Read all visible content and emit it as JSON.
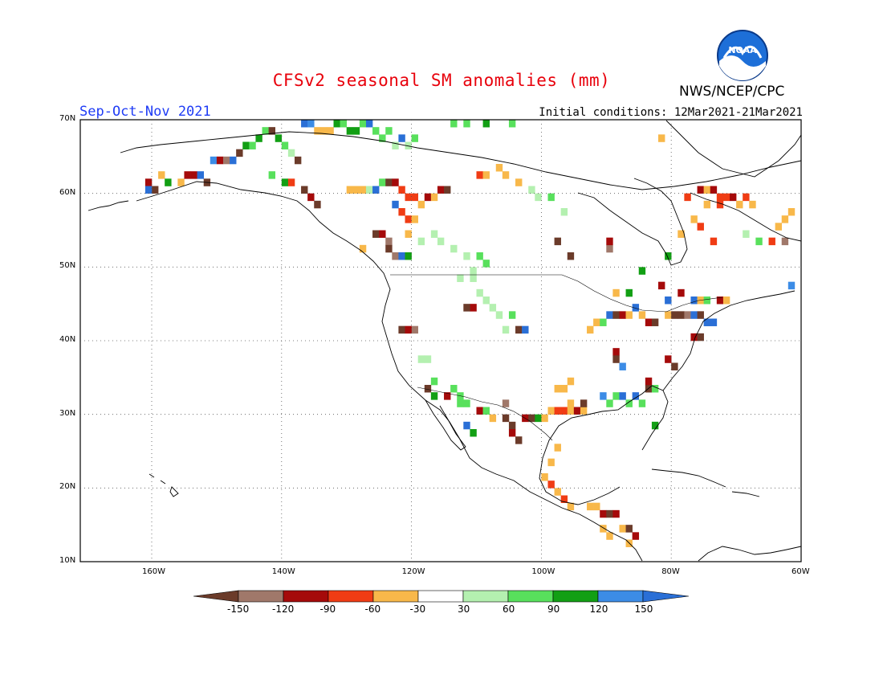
{
  "title": "CFSv2 seasonal SM anomalies (mm)",
  "season_label": "Sep-Oct-Nov 2021",
  "initial_conditions": "Initial conditions: 12Mar2021-21Mar2021",
  "org_label": "NWS/NCEP/CPC",
  "logo_text": "NOAA",
  "map": {
    "projection": "lat-lon",
    "lon_range": [
      -171,
      -60
    ],
    "lat_range": [
      10,
      70
    ],
    "lat_ticks": [
      "10N",
      "20N",
      "30N",
      "40N",
      "50N",
      "60N",
      "70N"
    ],
    "lon_ticks": [
      "160W",
      "140W",
      "120W",
      "100W",
      "80W",
      "60W"
    ],
    "grid": "dotted"
  },
  "colorbar": {
    "tick_labels": [
      "-150",
      "-120",
      "-90",
      "-60",
      "-30",
      "30",
      "60",
      "90",
      "120",
      "150"
    ],
    "colors": [
      "#6b3b2a",
      "#a0786a",
      "#a50a0a",
      "#f03c14",
      "#f8b84a",
      "#ffffff",
      "#b4f0b0",
      "#58e05c",
      "#129f14",
      "#3c8ce6",
      "#2a6fd6"
    ]
  },
  "anomaly_cells": [
    [
      -160.5,
      61.5,
      "#a50a0a"
    ],
    [
      -159.5,
      60.5,
      "#6b3b2a"
    ],
    [
      -160.5,
      60.5,
      "#2a6fd6"
    ],
    [
      -158.5,
      62.5,
      "#f8b84a"
    ],
    [
      -157.5,
      61.5,
      "#129f14"
    ],
    [
      -155.5,
      61.5,
      "#f8b84a"
    ],
    [
      -154.5,
      62.5,
      "#a50a0a"
    ],
    [
      -153.5,
      62.5,
      "#a50a0a"
    ],
    [
      -152.5,
      62.5,
      "#2a6fd6"
    ],
    [
      -151.5,
      61.5,
      "#6b3b2a"
    ],
    [
      -150.5,
      64.5,
      "#3c8ce6"
    ],
    [
      -149.5,
      64.5,
      "#a50a0a"
    ],
    [
      -148.5,
      64.5,
      "#a0786a"
    ],
    [
      -147.5,
      64.5,
      "#2a6fd6"
    ],
    [
      -146.5,
      65.5,
      "#6b3b2a"
    ],
    [
      -145.5,
      66.5,
      "#129f14"
    ],
    [
      -144.5,
      66.5,
      "#58e05c"
    ],
    [
      -143.5,
      67.5,
      "#129f14"
    ],
    [
      -142.5,
      68.5,
      "#58e05c"
    ],
    [
      -141.5,
      68.5,
      "#6b3b2a"
    ],
    [
      -140.5,
      67.5,
      "#129f14"
    ],
    [
      -139.5,
      66.5,
      "#58e05c"
    ],
    [
      -138.5,
      65.5,
      "#b4f0b0"
    ],
    [
      -137.5,
      64.5,
      "#6b3b2a"
    ],
    [
      -136.5,
      69.5,
      "#2a6fd6"
    ],
    [
      -135.5,
      69.5,
      "#3c8ce6"
    ],
    [
      -134.5,
      68.5,
      "#f8b84a"
    ],
    [
      -133.5,
      68.5,
      "#f8b84a"
    ],
    [
      -132.5,
      68.5,
      "#f8b84a"
    ],
    [
      -131.5,
      69.5,
      "#129f14"
    ],
    [
      -130.5,
      69.5,
      "#58e05c"
    ],
    [
      -129.5,
      68.5,
      "#129f14"
    ],
    [
      -128.5,
      68.5,
      "#129f14"
    ],
    [
      -127.5,
      69.5,
      "#58e05c"
    ],
    [
      -126.5,
      69.5,
      "#2a6fd6"
    ],
    [
      -125.5,
      68.5,
      "#58e05c"
    ],
    [
      -124.5,
      67.5,
      "#58e05c"
    ],
    [
      -123.5,
      68.5,
      "#58e05c"
    ],
    [
      -122.5,
      66.5,
      "#b4f0b0"
    ],
    [
      -121.5,
      67.5,
      "#2a6fd6"
    ],
    [
      -120.5,
      66.5,
      "#b4f0b0"
    ],
    [
      -119.5,
      67.5,
      "#58e05c"
    ],
    [
      -141.5,
      62.5,
      "#58e05c"
    ],
    [
      -139.5,
      61.5,
      "#129f14"
    ],
    [
      -138.5,
      61.5,
      "#f03c14"
    ],
    [
      -136.5,
      60.5,
      "#6b3b2a"
    ],
    [
      -135.5,
      59.5,
      "#a50a0a"
    ],
    [
      -134.5,
      58.5,
      "#6b3b2a"
    ],
    [
      -129.5,
      60.5,
      "#f8b84a"
    ],
    [
      -128.5,
      60.5,
      "#f8b84a"
    ],
    [
      -127.5,
      60.5,
      "#f8b84a"
    ],
    [
      -126.5,
      60.5,
      "#b4f0b0"
    ],
    [
      -125.5,
      60.5,
      "#2a6fd6"
    ],
    [
      -124.5,
      61.5,
      "#58e05c"
    ],
    [
      -123.5,
      61.5,
      "#6b3b2a"
    ],
    [
      -122.5,
      61.5,
      "#a50a0a"
    ],
    [
      -121.5,
      60.5,
      "#f03c14"
    ],
    [
      -120.5,
      59.5,
      "#f03c14"
    ],
    [
      -119.5,
      59.5,
      "#f03c14"
    ],
    [
      -118.5,
      58.5,
      "#f8b84a"
    ],
    [
      -117.5,
      59.5,
      "#a50a0a"
    ],
    [
      -116.5,
      59.5,
      "#f8b84a"
    ],
    [
      -115.5,
      60.5,
      "#a50a0a"
    ],
    [
      -114.5,
      60.5,
      "#6b3b2a"
    ],
    [
      -121.5,
      57.5,
      "#f03c14"
    ],
    [
      -120.5,
      56.5,
      "#f03c14"
    ],
    [
      -119.5,
      56.5,
      "#f8b84a"
    ],
    [
      -122.5,
      58.5,
      "#2a6fd6"
    ],
    [
      -120.5,
      54.5,
      "#f8b84a"
    ],
    [
      -123.5,
      53.5,
      "#a0786a"
    ],
    [
      -123.5,
      52.5,
      "#6b3b2a"
    ],
    [
      -122.5,
      51.5,
      "#a0786a"
    ],
    [
      -125.5,
      54.5,
      "#6b3b2a"
    ],
    [
      -124.5,
      54.5,
      "#a50a0a"
    ],
    [
      -127.5,
      52.5,
      "#f8b84a"
    ],
    [
      -121.5,
      51.5,
      "#2a6fd6"
    ],
    [
      -120.5,
      51.5,
      "#129f14"
    ],
    [
      -118.5,
      53.5,
      "#b4f0b0"
    ],
    [
      -116.5,
      54.5,
      "#b4f0b0"
    ],
    [
      -115.5,
      53.5,
      "#b4f0b0"
    ],
    [
      -113.5,
      52.5,
      "#b4f0b0"
    ],
    [
      -111.5,
      51.5,
      "#b4f0b0"
    ],
    [
      -109.5,
      51.5,
      "#58e05c"
    ],
    [
      -108.5,
      50.5,
      "#58e05c"
    ],
    [
      -110.5,
      49.5,
      "#b4f0b0"
    ],
    [
      -112.5,
      48.5,
      "#b4f0b0"
    ],
    [
      -110.5,
      48.5,
      "#b4f0b0"
    ],
    [
      -109.5,
      46.5,
      "#b4f0b0"
    ],
    [
      -108.5,
      45.5,
      "#b4f0b0"
    ],
    [
      -110.5,
      44.5,
      "#a50a0a"
    ],
    [
      -111.5,
      44.5,
      "#6b3b2a"
    ],
    [
      -107.5,
      44.5,
      "#b4f0b0"
    ],
    [
      -106.5,
      43.5,
      "#b4f0b0"
    ],
    [
      -104.5,
      43.5,
      "#58e05c"
    ],
    [
      -103.5,
      41.5,
      "#6b3b2a"
    ],
    [
      -102.5,
      41.5,
      "#2a6fd6"
    ],
    [
      -105.5,
      41.5,
      "#b4f0b0"
    ],
    [
      -119.5,
      41.5,
      "#a0786a"
    ],
    [
      -121.5,
      41.5,
      "#6b3b2a"
    ],
    [
      -120.5,
      41.5,
      "#a50a0a"
    ],
    [
      -118.5,
      37.5,
      "#b4f0b0"
    ],
    [
      -117.5,
      37.5,
      "#b4f0b0"
    ],
    [
      -116.5,
      34.5,
      "#58e05c"
    ],
    [
      -117.5,
      33.5,
      "#6b3b2a"
    ],
    [
      -116.5,
      32.5,
      "#129f14"
    ],
    [
      -114.5,
      32.5,
      "#a50a0a"
    ],
    [
      -113.5,
      33.5,
      "#58e05c"
    ],
    [
      -112.5,
      32.5,
      "#58e05c"
    ],
    [
      -112.5,
      31.5,
      "#58e05c"
    ],
    [
      -111.5,
      31.5,
      "#58e05c"
    ],
    [
      -111.5,
      28.5,
      "#2a6fd6"
    ],
    [
      -110.5,
      27.5,
      "#129f14"
    ],
    [
      -109.5,
      30.5,
      "#a50a0a"
    ],
    [
      -108.5,
      30.5,
      "#58e05c"
    ],
    [
      -107.5,
      29.5,
      "#f8b84a"
    ],
    [
      -105.5,
      31.5,
      "#a0786a"
    ],
    [
      -105.5,
      29.5,
      "#6b3b2a"
    ],
    [
      -104.5,
      28.5,
      "#6b3b2a"
    ],
    [
      -104.5,
      27.5,
      "#a50a0a"
    ],
    [
      -103.5,
      26.5,
      "#6b3b2a"
    ],
    [
      -102.5,
      29.5,
      "#a50a0a"
    ],
    [
      -101.5,
      29.5,
      "#6b3b2a"
    ],
    [
      -100.5,
      29.5,
      "#129f14"
    ],
    [
      -99.5,
      29.5,
      "#f8b84a"
    ],
    [
      -98.5,
      30.5,
      "#f8b84a"
    ],
    [
      -97.5,
      30.5,
      "#f03c14"
    ],
    [
      -96.5,
      30.5,
      "#f03c14"
    ],
    [
      -95.5,
      30.5,
      "#f8b84a"
    ],
    [
      -94.5,
      30.5,
      "#a50a0a"
    ],
    [
      -93.5,
      30.5,
      "#f8b84a"
    ],
    [
      -93.5,
      31.5,
      "#6b3b2a"
    ],
    [
      -95.5,
      31.5,
      "#f8b84a"
    ],
    [
      -97.5,
      25.5,
      "#f8b84a"
    ],
    [
      -98.5,
      23.5,
      "#f8b84a"
    ],
    [
      -99.5,
      21.5,
      "#f8b84a"
    ],
    [
      -98.5,
      20.5,
      "#f03c14"
    ],
    [
      -97.5,
      19.5,
      "#f8b84a"
    ],
    [
      -96.5,
      18.5,
      "#f03c14"
    ],
    [
      -95.5,
      17.5,
      "#f8b84a"
    ],
    [
      -92.5,
      17.5,
      "#f8b84a"
    ],
    [
      -91.5,
      17.5,
      "#f8b84a"
    ],
    [
      -90.5,
      16.5,
      "#a50a0a"
    ],
    [
      -89.5,
      16.5,
      "#6b3b2a"
    ],
    [
      -88.5,
      16.5,
      "#a50a0a"
    ],
    [
      -87.5,
      14.5,
      "#f8b84a"
    ],
    [
      -86.5,
      14.5,
      "#6b3b2a"
    ],
    [
      -85.5,
      13.5,
      "#a50a0a"
    ],
    [
      -86.5,
      12.5,
      "#f8b84a"
    ],
    [
      -90.5,
      14.5,
      "#f8b84a"
    ],
    [
      -89.5,
      13.5,
      "#f8b84a"
    ],
    [
      -97.5,
      33.5,
      "#f8b84a"
    ],
    [
      -96.5,
      33.5,
      "#f8b84a"
    ],
    [
      -95.5,
      34.5,
      "#f8b84a"
    ],
    [
      -90.5,
      32.5,
      "#3c8ce6"
    ],
    [
      -89.5,
      31.5,
      "#58e05c"
    ],
    [
      -88.5,
      32.5,
      "#58e05c"
    ],
    [
      -87.5,
      32.5,
      "#2a6fd6"
    ],
    [
      -86.5,
      31.5,
      "#58e05c"
    ],
    [
      -85.5,
      32.5,
      "#2a6fd6"
    ],
    [
      -84.5,
      31.5,
      "#58e05c"
    ],
    [
      -83.5,
      33.5,
      "#6b3b2a"
    ],
    [
      -83.5,
      34.5,
      "#a50a0a"
    ],
    [
      -82.5,
      33.5,
      "#58e05c"
    ],
    [
      -82.5,
      28.5,
      "#129f14"
    ],
    [
      -80.5,
      37.5,
      "#a50a0a"
    ],
    [
      -79.5,
      36.5,
      "#6b3b2a"
    ],
    [
      -88.5,
      38.5,
      "#a50a0a"
    ],
    [
      -88.5,
      37.5,
      "#6b3b2a"
    ],
    [
      -87.5,
      36.5,
      "#3c8ce6"
    ],
    [
      -92.5,
      41.5,
      "#f8b84a"
    ],
    [
      -91.5,
      42.5,
      "#f8b84a"
    ],
    [
      -90.5,
      42.5,
      "#58e05c"
    ],
    [
      -89.5,
      43.5,
      "#2a6fd6"
    ],
    [
      -88.5,
      43.5,
      "#6b3b2a"
    ],
    [
      -87.5,
      43.5,
      "#a50a0a"
    ],
    [
      -86.5,
      43.5,
      "#f8b84a"
    ],
    [
      -85.5,
      44.5,
      "#2a6fd6"
    ],
    [
      -84.5,
      43.5,
      "#f8b84a"
    ],
    [
      -83.5,
      42.5,
      "#a50a0a"
    ],
    [
      -82.5,
      42.5,
      "#6b3b2a"
    ],
    [
      -80.5,
      43.5,
      "#f8b84a"
    ],
    [
      -79.5,
      43.5,
      "#6b3b2a"
    ],
    [
      -78.5,
      43.5,
      "#6b3b2a"
    ],
    [
      -77.5,
      43.5,
      "#a0786a"
    ],
    [
      -76.5,
      43.5,
      "#2a6fd6"
    ],
    [
      -75.5,
      43.5,
      "#6b3b2a"
    ],
    [
      -74.5,
      42.5,
      "#2a6fd6"
    ],
    [
      -73.5,
      42.5,
      "#2a6fd6"
    ],
    [
      -76.5,
      45.5,
      "#2a6fd6"
    ],
    [
      -75.5,
      45.5,
      "#f8b84a"
    ],
    [
      -74.5,
      45.5,
      "#58e05c"
    ],
    [
      -72.5,
      45.5,
      "#a50a0a"
    ],
    [
      -71.5,
      45.5,
      "#f8b84a"
    ],
    [
      -76.5,
      40.5,
      "#a50a0a"
    ],
    [
      -75.5,
      40.5,
      "#6b3b2a"
    ],
    [
      -78.5,
      46.5,
      "#a50a0a"
    ],
    [
      -80.5,
      45.5,
      "#2a6fd6"
    ],
    [
      -81.5,
      47.5,
      "#a50a0a"
    ],
    [
      -88.5,
      46.5,
      "#f8b84a"
    ],
    [
      -86.5,
      46.5,
      "#129f14"
    ],
    [
      -84.5,
      49.5,
      "#129f14"
    ],
    [
      -89.5,
      52.5,
      "#a0786a"
    ],
    [
      -95.5,
      51.5,
      "#6b3b2a"
    ],
    [
      -97.5,
      53.5,
      "#6b3b2a"
    ],
    [
      -89.5,
      53.5,
      "#a50a0a"
    ],
    [
      -80.5,
      51.5,
      "#129f14"
    ],
    [
      -78.5,
      54.5,
      "#f8b84a"
    ],
    [
      -77.5,
      59.5,
      "#f03c14"
    ],
    [
      -75.5,
      60.5,
      "#a50a0a"
    ],
    [
      -74.5,
      60.5,
      "#f8b84a"
    ],
    [
      -73.5,
      60.5,
      "#a50a0a"
    ],
    [
      -72.5,
      59.5,
      "#f03c14"
    ],
    [
      -71.5,
      59.5,
      "#f03c14"
    ],
    [
      -70.5,
      59.5,
      "#a50a0a"
    ],
    [
      -69.5,
      58.5,
      "#f8b84a"
    ],
    [
      -68.5,
      59.5,
      "#f03c14"
    ],
    [
      -67.5,
      58.5,
      "#f8b84a"
    ],
    [
      -72.5,
      58.5,
      "#f03c14"
    ],
    [
      -74.5,
      58.5,
      "#f8b84a"
    ],
    [
      -76.5,
      56.5,
      "#f8b84a"
    ],
    [
      -75.5,
      55.5,
      "#f03c14"
    ],
    [
      -73.5,
      53.5,
      "#f03c14"
    ],
    [
      -63.5,
      55.5,
      "#f8b84a"
    ],
    [
      -62.5,
      56.5,
      "#f8b84a"
    ],
    [
      -61.5,
      57.5,
      "#f8b84a"
    ],
    [
      -64.5,
      53.5,
      "#f03c14"
    ],
    [
      -62.5,
      53.5,
      "#a0786a"
    ],
    [
      -68.5,
      54.5,
      "#b4f0b0"
    ],
    [
      -66.5,
      53.5,
      "#58e05c"
    ],
    [
      -61.5,
      47.5,
      "#3c8ce6"
    ],
    [
      -106.5,
      63.5,
      "#f8b84a"
    ],
    [
      -105.5,
      62.5,
      "#f8b84a"
    ],
    [
      -103.5,
      61.5,
      "#f8b84a"
    ],
    [
      -101.5,
      60.5,
      "#b4f0b0"
    ],
    [
      -100.5,
      59.5,
      "#b4f0b0"
    ],
    [
      -98.5,
      59.5,
      "#58e05c"
    ],
    [
      -96.5,
      57.5,
      "#b4f0b0"
    ],
    [
      -109.5,
      62.5,
      "#f03c14"
    ],
    [
      -108.5,
      62.5,
      "#f8b84a"
    ],
    [
      -81.5,
      67.5,
      "#f8b84a"
    ],
    [
      -113.5,
      69.5,
      "#58e05c"
    ],
    [
      -111.5,
      69.5,
      "#58e05c"
    ],
    [
      -108.5,
      69.5,
      "#129f14"
    ],
    [
      -104.5,
      69.5,
      "#58e05c"
    ]
  ]
}
